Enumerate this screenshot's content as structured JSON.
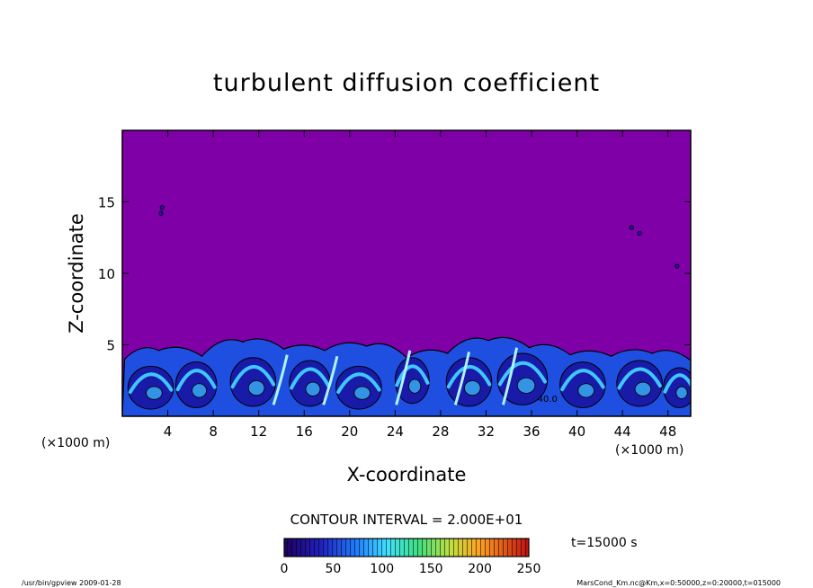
{
  "chart_data": {
    "type": "heatmap",
    "title": "turbulent diffusion coefficient",
    "xlabel": "X-coordinate",
    "ylabel": "Z-coordinate",
    "x_unit": "(×1000 m)",
    "y_unit": "(×1000 m)",
    "xlim": [
      0,
      50
    ],
    "ylim": [
      0,
      20
    ],
    "xticks": [
      4,
      8,
      12,
      16,
      20,
      24,
      28,
      32,
      36,
      40,
      44,
      48
    ],
    "yticks": [
      5,
      10,
      15
    ],
    "contour_interval": "CONTOUR INTERVAL = 2.000E+01",
    "time_label": "t=15000 s",
    "colorbar": {
      "range": [
        0,
        250
      ],
      "ticks": [
        0,
        50,
        100,
        150,
        200,
        250
      ]
    },
    "field_summary": {
      "background_value": 0,
      "boundary_layer_top": 4.5,
      "annotation": "40.0"
    },
    "colors": {
      "background_field": "#8000a8",
      "low": "#1a1aa8",
      "mid": "#1e4fe0",
      "high": "#3fc8ff"
    }
  },
  "footer": {
    "left": "/usr/bin/gpview   2009-01-28",
    "right": "MarsCond_Km.nc@Km,x=0:50000,z=0:20000,t=015000"
  }
}
